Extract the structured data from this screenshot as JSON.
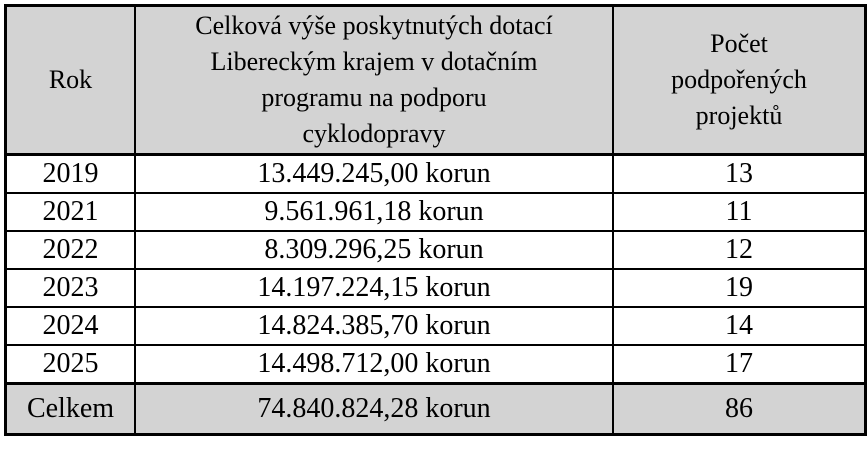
{
  "colors": {
    "header_bg": "#d3d3d3",
    "total_row_bg": "#d3d3d3",
    "row_bg": "#ffffff",
    "border": "#000000",
    "text": "#000000",
    "page_bg": "#ffffff"
  },
  "table": {
    "columns": [
      {
        "key": "rok",
        "label": "Rok"
      },
      {
        "key": "dotace",
        "label": "Celková výše poskytnutých dotací\nLibereckým krajem v dotačním\nprogramu na podporu\ncyklodopravy"
      },
      {
        "key": "pocet",
        "label": "Počet\npodpořených\nprojektů"
      }
    ],
    "rows": [
      {
        "rok": "2019",
        "dotace": "13.449.245,00 korun",
        "pocet": "13"
      },
      {
        "rok": "2021",
        "dotace": "9.561.961,18 korun",
        "pocet": "11"
      },
      {
        "rok": "2022",
        "dotace": "8.309.296,25 korun",
        "pocet": "12"
      },
      {
        "rok": "2023",
        "dotace": "14.197.224,15 korun",
        "pocet": "19"
      },
      {
        "rok": "2024",
        "dotace": "14.824.385,70 korun",
        "pocet": "14"
      },
      {
        "rok": "2025",
        "dotace": "14.498.712,00 korun",
        "pocet": "17"
      }
    ],
    "total_row": {
      "rok": "Celkem",
      "dotace": "74.840.824,28 korun",
      "pocet": "86"
    }
  },
  "chart_data": {
    "type": "table",
    "columns": [
      "Rok",
      "Celková výše poskytnutých dotací Libereckým krajem v dotačním programu na podporu cyklodopravy",
      "Počet podpořených projektů"
    ],
    "rows": [
      [
        "2019",
        "13.449.245,00 korun",
        "13"
      ],
      [
        "2021",
        "9.561.961,18 korun",
        "11"
      ],
      [
        "2022",
        "8.309.296,25 korun",
        "12"
      ],
      [
        "2023",
        "14.197.224,15 korun",
        "19"
      ],
      [
        "2024",
        "14.824.385,70 korun",
        "14"
      ],
      [
        "2025",
        "14.498.712,00 korun",
        "17"
      ],
      [
        "Celkem",
        "74.840.824,28 korun",
        "86"
      ]
    ]
  }
}
